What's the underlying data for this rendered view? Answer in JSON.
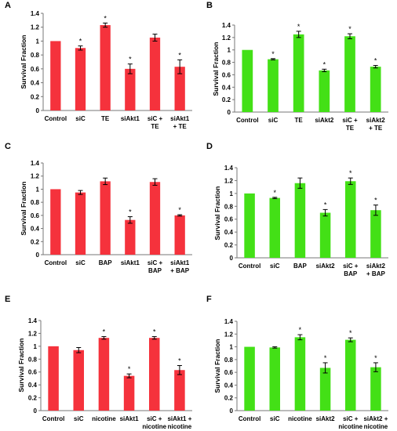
{
  "chart_data": [
    {
      "panel": "A",
      "type": "bar",
      "color": "#f5323c",
      "ylabel": "Survival Fraction",
      "ylim": [
        0,
        1.4
      ],
      "yticks": [
        "0",
        "0.2",
        "0.4",
        "0.6",
        "0.8",
        "1",
        "1.2",
        "1.4"
      ],
      "categories": [
        [
          "Control"
        ],
        [
          "siC"
        ],
        [
          "TE"
        ],
        [
          "siAkt1"
        ],
        [
          "siC +",
          "TE"
        ],
        [
          "siAkt1",
          "+ TE"
        ]
      ],
      "values": [
        1.0,
        0.9,
        1.23,
        0.6,
        1.05,
        0.63
      ],
      "errors": [
        0,
        0.03,
        0.03,
        0.07,
        0.05,
        0.1
      ],
      "significant": [
        false,
        true,
        true,
        true,
        false,
        true
      ]
    },
    {
      "panel": "B",
      "type": "bar",
      "color": "#43e016",
      "ylabel": "Survival Fraction",
      "ylim": [
        0,
        1.4
      ],
      "yticks": [
        "0",
        "0.2",
        "0.4",
        "0.6",
        "0.8",
        "1",
        "1.2",
        "1.4"
      ],
      "categories": [
        [
          "Control"
        ],
        [
          "siC"
        ],
        [
          "TE"
        ],
        [
          "siAkt2"
        ],
        [
          "siC +",
          "TE"
        ],
        [
          "siAkt2",
          "+ TE"
        ]
      ],
      "values": [
        1.0,
        0.85,
        1.25,
        0.67,
        1.22,
        0.73
      ],
      "errors": [
        0,
        0.01,
        0.05,
        0.02,
        0.04,
        0.02
      ],
      "significant": [
        false,
        true,
        true,
        true,
        true,
        true
      ]
    },
    {
      "panel": "C",
      "type": "bar",
      "color": "#f5323c",
      "ylabel": "Survival Fraction",
      "ylim": [
        0,
        1.4
      ],
      "yticks": [
        "0",
        "0.2",
        "0.4",
        "0.6",
        "0.8",
        "1",
        "1.2",
        "1.4"
      ],
      "categories": [
        [
          "Control"
        ],
        [
          "siC"
        ],
        [
          "BAP"
        ],
        [
          "siAkt1"
        ],
        [
          "siC +",
          "BAP"
        ],
        [
          "siAkt1",
          "+ BAP"
        ]
      ],
      "values": [
        1.0,
        0.95,
        1.12,
        0.53,
        1.11,
        0.6
      ],
      "errors": [
        0,
        0.03,
        0.05,
        0.05,
        0.05,
        0.01
      ],
      "significant": [
        false,
        false,
        false,
        true,
        false,
        true
      ]
    },
    {
      "panel": "D",
      "type": "bar",
      "color": "#43e016",
      "ylabel": "Survival Fraction",
      "ylim": [
        0,
        1.4
      ],
      "yticks": [
        "0",
        "0.2",
        "0.4",
        "0.6",
        "0.8",
        "1",
        "1.2",
        "1.4"
      ],
      "categories": [
        [
          "Control"
        ],
        [
          "siC"
        ],
        [
          "BAP"
        ],
        [
          "siAkt2"
        ],
        [
          "siC +",
          "BAP"
        ],
        [
          "siAkt2",
          "+ BAP"
        ]
      ],
      "values": [
        1.0,
        0.93,
        1.16,
        0.7,
        1.19,
        0.74
      ],
      "errors": [
        0,
        0.01,
        0.08,
        0.05,
        0.05,
        0.08
      ],
      "significant": [
        false,
        true,
        false,
        true,
        true,
        true
      ]
    },
    {
      "panel": "E",
      "type": "bar",
      "color": "#f5323c",
      "ylabel": "Survival Fraction",
      "ylim": [
        0,
        1.4
      ],
      "yticks": [
        "0",
        "0.2",
        "0.4",
        "0.6",
        "0.8",
        "1",
        "1.2",
        "1.4"
      ],
      "categories": [
        [
          "Control"
        ],
        [
          "siC"
        ],
        [
          "nicotine"
        ],
        [
          "siAkt1"
        ],
        [
          "siC +",
          "nicotine"
        ],
        [
          "siAkt1 +",
          "nicotine"
        ]
      ],
      "values": [
        1.0,
        0.94,
        1.13,
        0.54,
        1.13,
        0.63
      ],
      "errors": [
        0,
        0.04,
        0.02,
        0.03,
        0.02,
        0.07
      ],
      "significant": [
        false,
        false,
        true,
        true,
        true,
        true
      ]
    },
    {
      "panel": "F",
      "type": "bar",
      "color": "#43e016",
      "ylabel": "Survival Fraction",
      "ylim": [
        0,
        1.4
      ],
      "yticks": [
        "0",
        "0.2",
        "0.4",
        "0.6",
        "0.8",
        "1",
        "1.2",
        "1.4"
      ],
      "categories": [
        [
          "Control"
        ],
        [
          "siC"
        ],
        [
          "nicotine"
        ],
        [
          "siAkt2"
        ],
        [
          "siC +",
          "nicotine"
        ],
        [
          "siAkt2 +",
          "nicotine"
        ]
      ],
      "values": [
        1.0,
        0.99,
        1.15,
        0.67,
        1.11,
        0.68
      ],
      "errors": [
        0,
        0.01,
        0.04,
        0.08,
        0.03,
        0.07
      ],
      "significant": [
        false,
        false,
        true,
        true,
        true,
        true
      ]
    }
  ]
}
